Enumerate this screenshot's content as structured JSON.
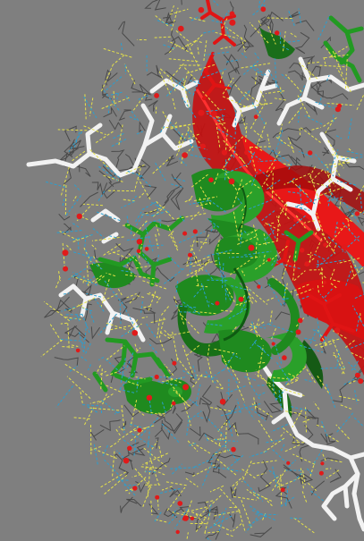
{
  "scene": {
    "kind": "molecular-structure-render",
    "background_color": "#7f7f7f",
    "colors": {
      "green_ribbon": "#1f8a1f",
      "green_ribbon_dark": "#0f5a12",
      "red_strand": "#e01414",
      "red_strand_dark": "#8a0a0a",
      "white_sticks": "#f2f2f2",
      "hbond_yellow": "#e6e24a",
      "contact_blue": "#2a9fd0",
      "atom_red": "#e01a1a",
      "wire_gray": "#4a4a4a"
    }
  }
}
